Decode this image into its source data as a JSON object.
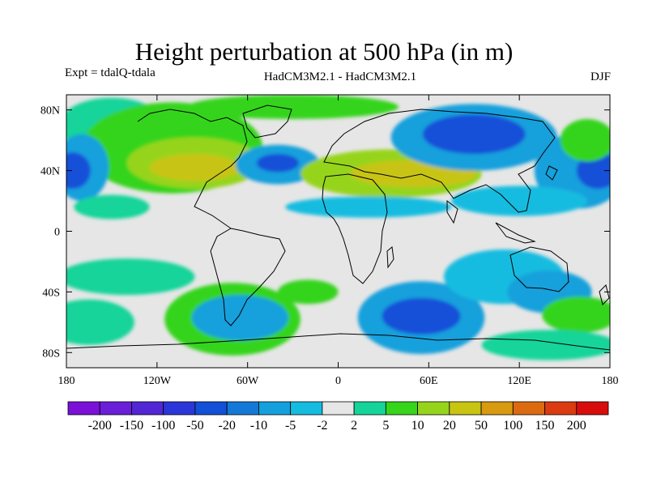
{
  "header": {
    "title": "Height perturbation at 500 hPa (in m)",
    "experiment": "Expt = tdalQ-tdala",
    "models": "HadCM3M2.1 - HadCM3M2.1",
    "season": "DJF"
  },
  "axes": {
    "lat_labels": [
      "80N",
      "40N",
      "0",
      "40S",
      "80S"
    ],
    "lat_values": [
      80,
      40,
      0,
      -40,
      -80
    ],
    "lon_labels": [
      "180",
      "120W",
      "60W",
      "0",
      "60E",
      "120E",
      "180"
    ],
    "lon_values": [
      -180,
      -120,
      -60,
      0,
      60,
      120,
      180
    ],
    "lat_range": [
      -90,
      90
    ],
    "lon_range": [
      -180,
      180
    ]
  },
  "colorbar": {
    "labels": [
      "-200",
      "-150",
      "-100",
      "-50",
      "-20",
      "-10",
      "-5",
      "-2",
      "2",
      "5",
      "10",
      "20",
      "50",
      "100",
      "150",
      "200"
    ],
    "colors": [
      "#7b10d8",
      "#6a1ed8",
      "#5226d4",
      "#2a36d8",
      "#1250d8",
      "#1478d6",
      "#14a0dc",
      "#14bce0",
      "#e6e6e6",
      "#14d49a",
      "#36d41a",
      "#96d41c",
      "#c8c412",
      "#d89a10",
      "#dc6a10",
      "#dc3a10",
      "#d80c0c"
    ]
  },
  "field": {
    "background_color": "#e6e6e6",
    "blobs": [
      {
        "lon": -150,
        "lat": 70,
        "rx": 35,
        "ry": 18,
        "level": 9
      },
      {
        "lon": -110,
        "lat": 55,
        "rx": 60,
        "ry": 30,
        "level": 10
      },
      {
        "lon": -95,
        "lat": 45,
        "rx": 45,
        "ry": 17,
        "level": 11
      },
      {
        "lon": -95,
        "lat": 42,
        "rx": 30,
        "ry": 9,
        "level": 12
      },
      {
        "lon": -170,
        "lat": 42,
        "rx": 18,
        "ry": 22,
        "level": 6
      },
      {
        "lon": -176,
        "lat": 40,
        "rx": 12,
        "ry": 12,
        "level": 4
      },
      {
        "lon": -40,
        "lat": 44,
        "rx": 28,
        "ry": 13,
        "level": 6
      },
      {
        "lon": -40,
        "lat": 45,
        "rx": 14,
        "ry": 6,
        "level": 4
      },
      {
        "lon": -30,
        "lat": 82,
        "rx": 70,
        "ry": 8,
        "level": 10
      },
      {
        "lon": 35,
        "lat": 38,
        "rx": 60,
        "ry": 16,
        "level": 11
      },
      {
        "lon": 50,
        "lat": 38,
        "rx": 42,
        "ry": 9,
        "level": 12
      },
      {
        "lon": 90,
        "lat": 62,
        "rx": 55,
        "ry": 22,
        "level": 6
      },
      {
        "lon": 90,
        "lat": 64,
        "rx": 34,
        "ry": 13,
        "level": 4
      },
      {
        "lon": 160,
        "lat": 40,
        "rx": 30,
        "ry": 25,
        "level": 6
      },
      {
        "lon": 172,
        "lat": 40,
        "rx": 14,
        "ry": 12,
        "level": 4
      },
      {
        "lon": 165,
        "lat": 60,
        "rx": 18,
        "ry": 14,
        "level": 10
      },
      {
        "lon": 20,
        "lat": 16,
        "rx": 55,
        "ry": 7,
        "level": 7
      },
      {
        "lon": 120,
        "lat": 20,
        "rx": 45,
        "ry": 10,
        "level": 7
      },
      {
        "lon": -150,
        "lat": 16,
        "rx": 25,
        "ry": 8,
        "level": 9
      },
      {
        "lon": -140,
        "lat": -30,
        "rx": 45,
        "ry": 12,
        "level": 9
      },
      {
        "lon": -165,
        "lat": -60,
        "rx": 30,
        "ry": 15,
        "level": 9
      },
      {
        "lon": -70,
        "lat": -58,
        "rx": 45,
        "ry": 24,
        "level": 10
      },
      {
        "lon": -65,
        "lat": -57,
        "rx": 32,
        "ry": 15,
        "level": 6
      },
      {
        "lon": -20,
        "lat": -40,
        "rx": 20,
        "ry": 8,
        "level": 10
      },
      {
        "lon": 55,
        "lat": -57,
        "rx": 42,
        "ry": 24,
        "level": 6
      },
      {
        "lon": 55,
        "lat": -56,
        "rx": 26,
        "ry": 12,
        "level": 4
      },
      {
        "lon": 110,
        "lat": -30,
        "rx": 40,
        "ry": 18,
        "level": 7
      },
      {
        "lon": 140,
        "lat": -40,
        "rx": 28,
        "ry": 14,
        "level": 6
      },
      {
        "lon": 160,
        "lat": -55,
        "rx": 25,
        "ry": 12,
        "level": 10
      },
      {
        "lon": 140,
        "lat": -75,
        "rx": 45,
        "ry": 10,
        "level": 9
      }
    ]
  }
}
